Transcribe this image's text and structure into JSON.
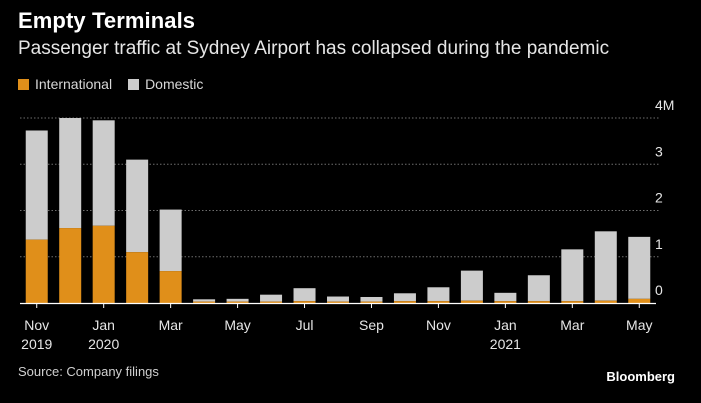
{
  "header": {
    "title": "Empty Terminals",
    "subtitle": "Passenger traffic at Sydney Airport has collapsed during the pandemic"
  },
  "legend": [
    {
      "label": "International",
      "color": "#e08f1a"
    },
    {
      "label": "Domestic",
      "color": "#cccccc"
    }
  ],
  "footer": {
    "source": "Source: Company filings",
    "brand": "Bloomberg"
  },
  "colors": {
    "background": "#000000",
    "international": "#e08f1a",
    "domestic": "#cccccc",
    "grid": "#6e6e6e",
    "axis_text": "#e6e6e6"
  },
  "chart_data": {
    "type": "bar",
    "stacked": true,
    "title": "Empty Terminals",
    "subtitle": "Passenger traffic at Sydney Airport has collapsed during the pandemic",
    "categories": [
      "Nov 2019",
      "Dec 2019",
      "Jan 2020",
      "Feb 2020",
      "Mar 2020",
      "Apr 2020",
      "May 2020",
      "Jun 2020",
      "Jul 2020",
      "Aug 2020",
      "Sep 2020",
      "Oct 2020",
      "Nov 2020",
      "Dec 2020",
      "Jan 2021",
      "Feb 2021",
      "Mar 2021",
      "Apr 2021",
      "May 2021"
    ],
    "series": [
      {
        "name": "International",
        "color": "#e08f1a",
        "values": [
          1.37,
          1.62,
          1.67,
          1.1,
          0.69,
          0.03,
          0.03,
          0.03,
          0.04,
          0.03,
          0.03,
          0.04,
          0.04,
          0.05,
          0.04,
          0.04,
          0.04,
          0.05,
          0.09
        ]
      },
      {
        "name": "Domestic",
        "color": "#cccccc",
        "values": [
          2.36,
          2.38,
          2.28,
          2.0,
          1.33,
          0.05,
          0.06,
          0.15,
          0.28,
          0.11,
          0.1,
          0.17,
          0.3,
          0.65,
          0.18,
          0.56,
          1.12,
          1.5,
          1.34
        ]
      }
    ],
    "x_tick_labels": [
      {
        "index": 0,
        "line1": "Nov",
        "line2": "2019"
      },
      {
        "index": 2,
        "line1": "Jan",
        "line2": "2020"
      },
      {
        "index": 4,
        "line1": "Mar",
        "line2": ""
      },
      {
        "index": 6,
        "line1": "May",
        "line2": ""
      },
      {
        "index": 8,
        "line1": "Jul",
        "line2": ""
      },
      {
        "index": 10,
        "line1": "Sep",
        "line2": ""
      },
      {
        "index": 12,
        "line1": "Nov",
        "line2": ""
      },
      {
        "index": 14,
        "line1": "Jan",
        "line2": "2021"
      },
      {
        "index": 16,
        "line1": "Mar",
        "line2": ""
      },
      {
        "index": 18,
        "line1": "May",
        "line2": ""
      }
    ],
    "y_ticks": [
      {
        "value": 0,
        "label": "0"
      },
      {
        "value": 1,
        "label": "1"
      },
      {
        "value": 2,
        "label": "2"
      },
      {
        "value": 3,
        "label": "3"
      },
      {
        "value": 4,
        "label": "4M"
      }
    ],
    "ylim": [
      0,
      4
    ],
    "y_axis_side": "right",
    "grid": true,
    "legend_position": "top-left",
    "xlabel": "",
    "ylabel": ""
  }
}
